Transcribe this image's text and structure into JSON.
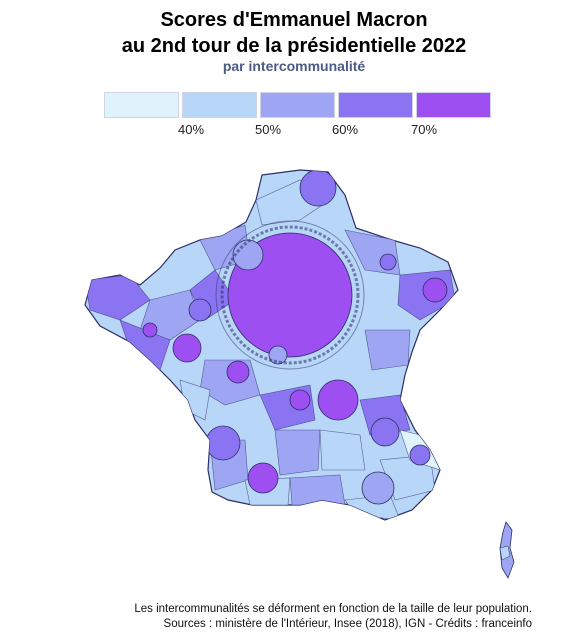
{
  "title_line1": "Scores d'Emmanuel Macron",
  "title_line2": "au 2nd tour de la présidentielle 2022",
  "subtitle": "par intercommunalité",
  "legend": {
    "colors": [
      "#dff3fb",
      "#b8d6f8",
      "#9ea6f4",
      "#8a74f2",
      "#9d4ff2"
    ],
    "ticks": [
      "40%",
      "50%",
      "60%",
      "70%"
    ]
  },
  "map_colors": {
    "border": "#2c2f66",
    "fill_light": "#b8d6f8",
    "fill_mid": "#9ea6f4",
    "fill_dark": "#8a74f2",
    "fill_max": "#9d4ff2"
  },
  "footer_line1": "Les intercommunalités se déforment en fonction de la taille de leur population.",
  "footer_line2": "Sources : ministère de l'Intérieur, Insee (2018), IGN - Crédits : franceinfo"
}
